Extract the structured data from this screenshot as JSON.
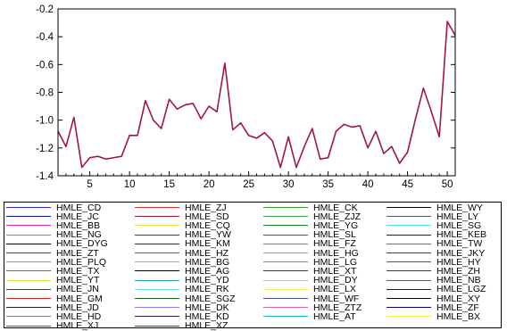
{
  "chart_data": {
    "type": "line",
    "x": [
      1,
      2,
      3,
      4,
      5,
      6,
      7,
      8,
      9,
      10,
      11,
      12,
      13,
      14,
      15,
      16,
      17,
      18,
      19,
      20,
      21,
      22,
      23,
      24,
      25,
      26,
      27,
      28,
      29,
      30,
      31,
      32,
      33,
      34,
      35,
      36,
      37,
      38,
      39,
      40,
      41,
      42,
      43,
      44,
      45,
      46,
      47,
      48,
      49,
      50,
      51
    ],
    "series": [
      {
        "color": "#a01840",
        "values": [
          -1.08,
          -1.19,
          -0.98,
          -1.34,
          -1.27,
          -1.26,
          -1.28,
          -1.27,
          -1.26,
          -1.11,
          -1.11,
          -0.86,
          -1.0,
          -1.06,
          -0.85,
          -0.92,
          -0.89,
          -0.88,
          -0.99,
          -0.9,
          -0.94,
          -0.59,
          -1.07,
          -1.02,
          -1.11,
          -1.13,
          -1.09,
          -1.15,
          -1.34,
          -1.12,
          -1.34,
          -1.19,
          -1.06,
          -1.28,
          -1.27,
          -1.08,
          -1.03,
          -1.05,
          -1.04,
          -1.2,
          -1.08,
          -1.24,
          -1.19,
          -1.31,
          -1.23,
          -0.99,
          -0.77,
          -0.94,
          -1.12,
          -0.29,
          -0.39
        ]
      }
    ],
    "ylim": [
      -1.4,
      -0.2
    ],
    "xlim": [
      1,
      51
    ],
    "y_ticks": [
      -1.4,
      -1.2,
      -1.0,
      -0.8,
      -0.6,
      -0.4,
      -0.2
    ],
    "y_tick_labels": [
      "-1.4",
      "-1.2",
      "-1.0",
      "-0.8",
      "-0.6",
      "-0.4",
      "-0.2"
    ],
    "x_ticks": [
      5,
      10,
      15,
      20,
      25,
      30,
      35,
      40,
      45,
      50
    ],
    "x_tick_labels": [
      "5",
      "10",
      "15",
      "20",
      "25",
      "30",
      "35",
      "40",
      "45",
      "50"
    ],
    "legend_position": "below",
    "legend": [
      {
        "name": "HMLE_CD",
        "color": "#2a2ad8"
      },
      {
        "name": "HMLE_ZJ",
        "color": "#e03030"
      },
      {
        "name": "HMLE_CK",
        "color": "#30a030"
      },
      {
        "name": "HMLE_WY",
        "color": "#000000"
      },
      {
        "name": "HMLE_JC",
        "color": "#1010a0"
      },
      {
        "name": "HMLE_SD",
        "color": "#a01840"
      },
      {
        "name": "HMLE_ZJZ",
        "color": "#40a050"
      },
      {
        "name": "HMLE_LY",
        "color": "#555555"
      },
      {
        "name": "HMLE_BB",
        "color": "#e02090"
      },
      {
        "name": "HMLE_CQ",
        "color": "#e6e040"
      },
      {
        "name": "HMLE_YG",
        "color": "#1a8a30"
      },
      {
        "name": "HMLE_SG",
        "color": "#50e0e0"
      },
      {
        "name": "HMLE_NG",
        "color": "#8080c0"
      },
      {
        "name": "HMLE_YW",
        "color": "#3030c0"
      },
      {
        "name": "HMLE_SL",
        "color": "#d02020"
      },
      {
        "name": "HMLE_KEB",
        "color": "#202020"
      },
      {
        "name": "HMLE_DYG",
        "color": "#000000"
      },
      {
        "name": "HMLE_KM",
        "color": "#2020a0"
      },
      {
        "name": "HMLE_FZ",
        "color": "#808080"
      },
      {
        "name": "HMLE_TW",
        "color": "#707070"
      },
      {
        "name": "HMLE_ZT",
        "color": "#a02030"
      },
      {
        "name": "HMLE_HZ",
        "color": "#2a6ad8"
      },
      {
        "name": "HMLE_HG",
        "color": "#a0a0a0"
      },
      {
        "name": "HMLE_JKY",
        "color": "#404040"
      },
      {
        "name": "HMLE_PLQ",
        "color": "#30c0c0"
      },
      {
        "name": "HMLE_BG",
        "color": "#e080c0"
      },
      {
        "name": "HMLE_LG",
        "color": "#8080ff"
      },
      {
        "name": "HMLE_HY",
        "color": "#c02040"
      },
      {
        "name": "HMLE_TX",
        "color": "#309040"
      },
      {
        "name": "HMLE_AG",
        "color": "#000000"
      },
      {
        "name": "HMLE_XT",
        "color": "#303080"
      },
      {
        "name": "HMLE_ZH",
        "color": "#a01010"
      },
      {
        "name": "HMLE_YT",
        "color": "#e0e040"
      },
      {
        "name": "HMLE_YD",
        "color": "#20a0a0"
      },
      {
        "name": "HMLE_DY",
        "color": "#c0c0c0"
      },
      {
        "name": "HMLE_NB",
        "color": "#606060"
      },
      {
        "name": "HMLE_JN",
        "color": "#404040"
      },
      {
        "name": "HMLE_RK",
        "color": "#60e0e0"
      },
      {
        "name": "HMLE_LX",
        "color": "#f0f060"
      },
      {
        "name": "HMLE_LGZ",
        "color": "#202020"
      },
      {
        "name": "HMLE_GM",
        "color": "#d02020"
      },
      {
        "name": "HMLE_SGZ",
        "color": "#206020"
      },
      {
        "name": "HMLE_WF",
        "color": "#5050a0"
      },
      {
        "name": "HMLE_XY",
        "color": "#000000"
      },
      {
        "name": "HMLE_JD",
        "color": "#202020"
      },
      {
        "name": "HMLE_DK",
        "color": "#8080ff"
      },
      {
        "name": "HMLE_ZTZ",
        "color": "#e060a0"
      },
      {
        "name": "HMLE_ZF",
        "color": "#000080"
      },
      {
        "name": "HMLE_HD",
        "color": "#808080"
      },
      {
        "name": "HMLE_KD",
        "color": "#202060"
      },
      {
        "name": "HMLE_AT",
        "color": "#20c0c0"
      },
      {
        "name": "HMLE_BX",
        "color": "#f0f040"
      },
      {
        "name": "HMLE_XJ",
        "color": "#4040e0"
      },
      {
        "name": "HMLE_XZ",
        "color": "#a01830"
      }
    ]
  }
}
